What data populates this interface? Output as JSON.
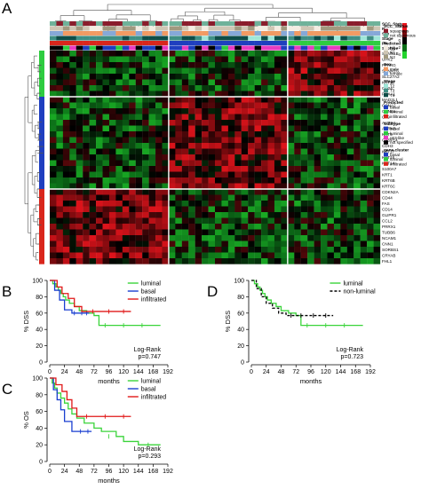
{
  "panels": [
    {
      "label": "A"
    },
    {
      "label": "B"
    },
    {
      "label": "C"
    },
    {
      "label": "D"
    }
  ],
  "heatmap": {
    "row_annotations": [
      "SCC_Status",
      "N",
      "Sex",
      "Stage",
      "Predicted",
      "Subtype"
    ],
    "gene_clusters": [
      {
        "name": "luminal",
        "color": "#2ecc40",
        "genes": [
          "SCNN1B",
          "UPK2",
          "PPARG",
          "SCNN1G",
          "SLC27A2",
          "KRT20",
          "CD24",
          "FOXA1"
        ]
      },
      {
        "name": "basal",
        "color": "#1f3fbf",
        "genes": [
          "MAD2L1",
          "CCNA2",
          "CCNB1",
          "CA9",
          "AURKA",
          "AURKB",
          "KRT5",
          "CASP14",
          "CDH3",
          "KRT17",
          "KRT16",
          "KRT14",
          "S100A7",
          "KRT1",
          "KRT6B",
          "KRT6C"
        ]
      },
      {
        "name": "infiltrated",
        "color": "#d9261c",
        "genes": [
          "CDKN2A",
          "CD44",
          "FAS",
          "CD14",
          "GLIPR1",
          "CCL2",
          "PRRX1",
          "TUBB6",
          "NCAM1",
          "CNN1",
          "SORBS1",
          "CRYAB",
          "FHL1"
        ]
      }
    ],
    "scale": {
      "labels": [
        "4",
        "2",
        "0",
        "-2",
        "-4"
      ],
      "colors": [
        "#e8141c",
        "#7a0a0e",
        "#000000",
        "#0c6e18",
        "#22d42c"
      ]
    },
    "legend": [
      {
        "title": "SCC_Status",
        "items": [
          {
            "label": "squamous",
            "color": "#8a1d2c"
          },
          {
            "label": "not squamous",
            "color": "#6fb29a"
          }
        ]
      },
      {
        "title": "N",
        "items": [
          {
            "label": "N0",
            "color": "#f3ede2"
          },
          {
            "label": "N1",
            "color": "#cfc6b4"
          },
          {
            "label": "N2",
            "color": "#a1997f"
          }
        ]
      },
      {
        "title": "Sex",
        "items": [
          {
            "label": "male",
            "color": "#f29a63"
          },
          {
            "label": "female",
            "color": "#86a8d8"
          }
        ]
      },
      {
        "title": "Stage",
        "items": [
          {
            "label": "T2",
            "color": "#9fe6d8"
          },
          {
            "label": "T3",
            "color": "#3f8f84"
          },
          {
            "label": "T4",
            "color": "#0e4d48"
          }
        ]
      },
      {
        "title": "Predicted",
        "items": [
          {
            "label": "basal",
            "color": "#1f3fbf"
          },
          {
            "label": "luminal",
            "color": "#2ecc40"
          },
          {
            "label": "infiltrated",
            "color": "#d9261c"
          }
        ]
      },
      {
        "title": "Subtype",
        "items": [
          {
            "label": "basal",
            "color": "#1f3fbf"
          },
          {
            "label": "luminal",
            "color": "#2ecc40"
          },
          {
            "label": "p53-like",
            "color": "#e83cc0"
          },
          {
            "label": "not specified",
            "color": "#000000"
          }
        ]
      },
      {
        "title": "gene.cluster",
        "items": [
          {
            "label": "basal",
            "color": "#1f3fbf"
          },
          {
            "label": "luminal",
            "color": "#2ecc40"
          },
          {
            "label": "infiltrated",
            "color": "#d9261c"
          }
        ]
      }
    ],
    "sample_count": 50
  },
  "chart_data": [
    {
      "type": "line",
      "panel": "B",
      "ylabel": "% DSS",
      "xlabel": "months",
      "xlim": [
        0,
        192
      ],
      "ylim": [
        0,
        100
      ],
      "xticks": [
        "0",
        "24",
        "48",
        "72",
        "96",
        "120",
        "144",
        "168",
        "192"
      ],
      "yticks": [
        "0",
        "20",
        "40",
        "60",
        "80",
        "100"
      ],
      "annotation": [
        "Log-Rank",
        "p=0.747"
      ],
      "legend_position": "top-right",
      "series": [
        {
          "name": "luminal",
          "color": "#3ad43a",
          "steps": [
            [
              0,
              100
            ],
            [
              5,
              96
            ],
            [
              10,
              92
            ],
            [
              14,
              88
            ],
            [
              18,
              84
            ],
            [
              22,
              80
            ],
            [
              26,
              76
            ],
            [
              32,
              72
            ],
            [
              40,
              68
            ],
            [
              48,
              63
            ],
            [
              60,
              60
            ],
            [
              72,
              57
            ],
            [
              80,
              45
            ],
            [
              180,
              45
            ]
          ],
          "censor": [
            [
              90,
              45
            ],
            [
              120,
              45
            ],
            [
              150,
              45
            ]
          ]
        },
        {
          "name": "basal",
          "color": "#1a3fd0",
          "steps": [
            [
              0,
              100
            ],
            [
              8,
              88
            ],
            [
              16,
              76
            ],
            [
              24,
              64
            ],
            [
              36,
              60
            ],
            [
              64,
              60
            ]
          ],
          "censor": [
            [
              40,
              60
            ],
            [
              52,
              60
            ],
            [
              60,
              60
            ]
          ]
        },
        {
          "name": "infiltrated",
          "color": "#e01818",
          "steps": [
            [
              0,
              100
            ],
            [
              12,
              92
            ],
            [
              20,
              84
            ],
            [
              30,
              78
            ],
            [
              40,
              68
            ],
            [
              52,
              62
            ],
            [
              132,
              62
            ]
          ],
          "censor": [
            [
              70,
              62
            ],
            [
              96,
              62
            ],
            [
              120,
              62
            ]
          ]
        }
      ]
    },
    {
      "type": "line",
      "panel": "C",
      "ylabel": "% OS",
      "xlabel": "months",
      "xlim": [
        0,
        192
      ],
      "ylim": [
        0,
        100
      ],
      "xticks": [
        "0",
        "24",
        "48",
        "72",
        "96",
        "120",
        "144",
        "168",
        "192"
      ],
      "yticks": [
        "0",
        "20",
        "40",
        "60",
        "80",
        "100"
      ],
      "annotation": [
        "Log-Rank",
        "p=0.293"
      ],
      "legend_position": "top-right",
      "series": [
        {
          "name": "luminal",
          "color": "#3ad43a",
          "steps": [
            [
              0,
              100
            ],
            [
              4,
              94
            ],
            [
              8,
              88
            ],
            [
              12,
              82
            ],
            [
              18,
              76
            ],
            [
              24,
              70
            ],
            [
              30,
              63
            ],
            [
              36,
              57
            ],
            [
              44,
              52
            ],
            [
              56,
              46
            ],
            [
              72,
              40
            ],
            [
              84,
              36
            ],
            [
              108,
              30
            ],
            [
              120,
              24
            ],
            [
              144,
              20
            ],
            [
              180,
              20
            ]
          ],
          "censor": [
            [
              96,
              30
            ],
            [
              160,
              20
            ]
          ]
        },
        {
          "name": "basal",
          "color": "#1a3fd0",
          "steps": [
            [
              0,
              100
            ],
            [
              6,
              86
            ],
            [
              12,
              74
            ],
            [
              18,
              62
            ],
            [
              24,
              48
            ],
            [
              36,
              36
            ],
            [
              68,
              36
            ]
          ],
          "censor": [
            [
              50,
              36
            ],
            [
              62,
              36
            ]
          ]
        },
        {
          "name": "infiltrated",
          "color": "#e01818",
          "steps": [
            [
              0,
              100
            ],
            [
              10,
              92
            ],
            [
              20,
              84
            ],
            [
              28,
              74
            ],
            [
              36,
              64
            ],
            [
              44,
              54
            ],
            [
              132,
              54
            ]
          ],
          "censor": [
            [
              60,
              54
            ],
            [
              90,
              54
            ],
            [
              120,
              54
            ]
          ]
        }
      ]
    },
    {
      "type": "line",
      "panel": "D",
      "ylabel": "% DSS",
      "xlabel": "months",
      "xlim": [
        0,
        192
      ],
      "ylim": [
        0,
        100
      ],
      "xticks": [
        "0",
        "24",
        "48",
        "72",
        "96",
        "120",
        "144",
        "168",
        "192"
      ],
      "yticks": [
        "0",
        "20",
        "40",
        "60",
        "80",
        "100"
      ],
      "annotation": [
        "Log-Rank",
        "p=0.723"
      ],
      "legend_position": "top-right",
      "series": [
        {
          "name": "luminal",
          "color": "#3ad43a",
          "dash": false,
          "steps": [
            [
              0,
              100
            ],
            [
              5,
              96
            ],
            [
              10,
              92
            ],
            [
              14,
              88
            ],
            [
              18,
              84
            ],
            [
              22,
              80
            ],
            [
              26,
              76
            ],
            [
              32,
              72
            ],
            [
              40,
              68
            ],
            [
              48,
              63
            ],
            [
              60,
              60
            ],
            [
              72,
              57
            ],
            [
              80,
              45
            ],
            [
              180,
              45
            ]
          ],
          "censor": [
            [
              90,
              45
            ],
            [
              120,
              45
            ],
            [
              150,
              45
            ]
          ]
        },
        {
          "name": "non-luminal",
          "color": "#000000",
          "dash": true,
          "steps": [
            [
              0,
              100
            ],
            [
              8,
              90
            ],
            [
              16,
              80
            ],
            [
              24,
              72
            ],
            [
              34,
              66
            ],
            [
              44,
              60
            ],
            [
              56,
              57
            ],
            [
              132,
              57
            ]
          ],
          "censor": [
            [
              64,
              57
            ],
            [
              80,
              57
            ],
            [
              100,
              57
            ],
            [
              120,
              57
            ]
          ]
        }
      ]
    }
  ]
}
